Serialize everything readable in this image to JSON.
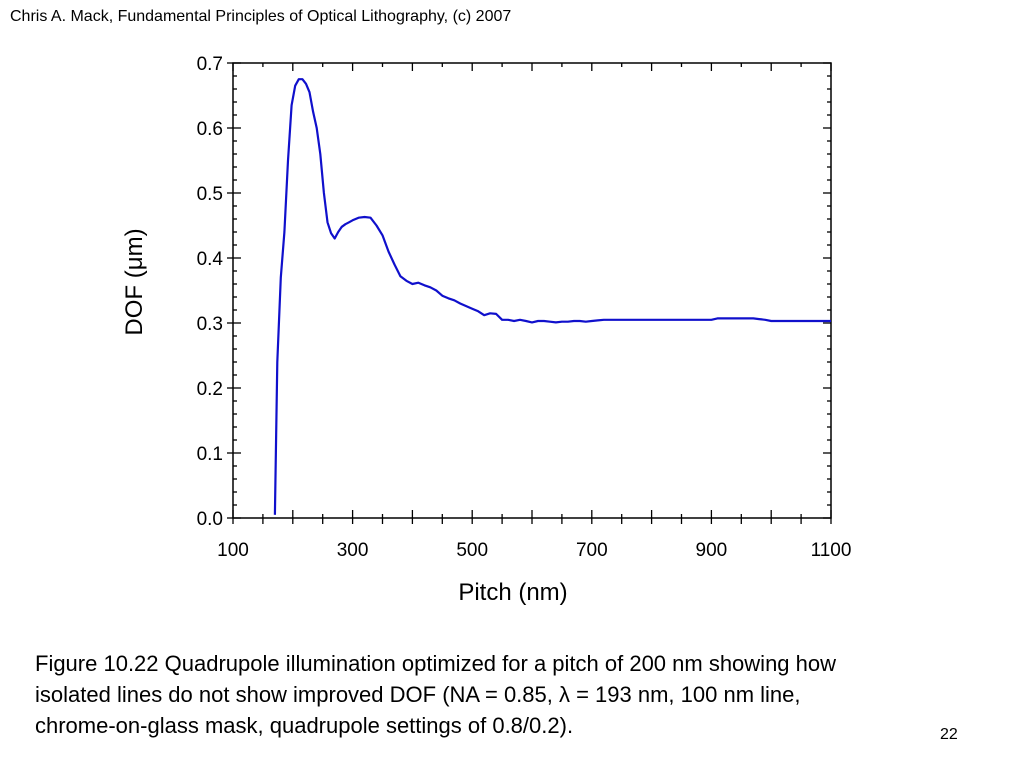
{
  "header": {
    "text": "Chris A. Mack, Fundamental Principles of Optical Lithography, (c) 2007"
  },
  "caption": {
    "lines": [
      "Figure 10.22  Quadrupole illumination optimized for a pitch of 200 nm showing how",
      "isolated lines do not show improved DOF (NA = 0.85, λ = 193 nm, 100 nm line,",
      "chrome-on-glass mask, quadrupole settings of 0.8/0.2)."
    ]
  },
  "page_number": "22",
  "chart_data": {
    "type": "line",
    "title": "",
    "xlabel": "Pitch (nm)",
    "ylabel": "DOF (μm)",
    "xlim": [
      100,
      1100
    ],
    "ylim": [
      0.0,
      0.7
    ],
    "x_ticks": [
      "100",
      "300",
      "500",
      "700",
      "900",
      "1100"
    ],
    "x_tick_values": [
      100,
      300,
      500,
      700,
      900,
      1100
    ],
    "y_ticks": [
      "0.0",
      "0.1",
      "0.2",
      "0.3",
      "0.4",
      "0.5",
      "0.6",
      "0.7"
    ],
    "y_tick_values": [
      0.0,
      0.1,
      0.2,
      0.3,
      0.4,
      0.5,
      0.6,
      0.7
    ],
    "grid": false,
    "line_color": "#1010cc",
    "series": [
      {
        "x": [
          170,
          174,
          180,
          186,
          192,
          198,
          204,
          210,
          216,
          222,
          228,
          234,
          240,
          246,
          252,
          258,
          264,
          270,
          276,
          282,
          288,
          294,
          300,
          310,
          320,
          330,
          340,
          350,
          360,
          370,
          380,
          390,
          400,
          410,
          420,
          430,
          440,
          450,
          460,
          470,
          480,
          490,
          500,
          510,
          520,
          530,
          540,
          550,
          560,
          570,
          580,
          590,
          600,
          610,
          620,
          630,
          640,
          650,
          660,
          670,
          680,
          690,
          700,
          710,
          720,
          730,
          740,
          750,
          760,
          770,
          780,
          790,
          800,
          850,
          900,
          910,
          950,
          970,
          980,
          990,
          1000,
          1050,
          1100
        ],
        "values": [
          0.005,
          0.24,
          0.37,
          0.44,
          0.55,
          0.635,
          0.665,
          0.675,
          0.675,
          0.668,
          0.655,
          0.625,
          0.6,
          0.56,
          0.5,
          0.455,
          0.438,
          0.43,
          0.44,
          0.448,
          0.452,
          0.455,
          0.458,
          0.462,
          0.463,
          0.462,
          0.45,
          0.435,
          0.41,
          0.39,
          0.372,
          0.365,
          0.36,
          0.362,
          0.358,
          0.355,
          0.35,
          0.342,
          0.338,
          0.335,
          0.33,
          0.326,
          0.322,
          0.318,
          0.312,
          0.315,
          0.314,
          0.305,
          0.305,
          0.303,
          0.305,
          0.303,
          0.301,
          0.303,
          0.303,
          0.302,
          0.301,
          0.302,
          0.302,
          0.303,
          0.303,
          0.302,
          0.303,
          0.304,
          0.305,
          0.305,
          0.305,
          0.305,
          0.305,
          0.305,
          0.305,
          0.305,
          0.305,
          0.305,
          0.305,
          0.307,
          0.307,
          0.307,
          0.306,
          0.305,
          0.303,
          0.303,
          0.303
        ]
      }
    ]
  }
}
